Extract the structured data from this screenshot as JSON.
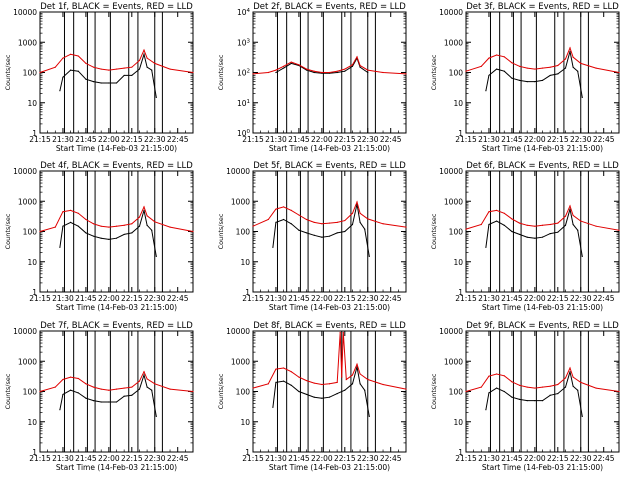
{
  "colors": {
    "events": "#000000",
    "lld": "#e00000",
    "frame": "#000000"
  },
  "common": {
    "xlabel": "Start Time (14-Feb-03 21:15:00)",
    "ylabel": "Counts/sec",
    "xticks": [
      "21:15",
      "21:30",
      "21:45",
      "22:00",
      "22:15",
      "22:30",
      "22:45"
    ],
    "yscale": "log",
    "ylim": [
      1,
      10000
    ]
  },
  "chart_data": [
    {
      "type": "line",
      "title": "Det 1f, BLACK = Events, RED = LLD",
      "xlim": [
        "21:15",
        "22:55"
      ],
      "ylim": [
        1,
        10000
      ],
      "yscale": "log",
      "yticks": [
        "1",
        "10",
        "100",
        "1000",
        "10000"
      ],
      "gaps": [
        "21:31",
        "21:37",
        "21:46",
        "21:51",
        "22:01",
        "22:13",
        "22:19",
        "22:30",
        "22:35"
      ],
      "series": [
        {
          "name": "Events",
          "color": "black",
          "x": [
            "21:28",
            "21:30",
            "21:35",
            "21:40",
            "21:45",
            "21:50",
            "21:55",
            "22:00",
            "22:05",
            "22:10",
            "22:15",
            "22:20",
            "22:23",
            "22:25",
            "22:28",
            "22:31"
          ],
          "y": [
            25,
            70,
            120,
            110,
            60,
            50,
            45,
            45,
            45,
            80,
            80,
            130,
            400,
            150,
            120,
            15
          ]
        },
        {
          "name": "LLD",
          "color": "red",
          "x": [
            "21:15",
            "21:25",
            "21:30",
            "21:35",
            "21:40",
            "21:45",
            "21:50",
            "21:55",
            "22:00",
            "22:05",
            "22:10",
            "22:15",
            "22:20",
            "22:23",
            "22:25",
            "22:30",
            "22:40",
            "22:55"
          ],
          "y": [
            100,
            150,
            300,
            400,
            350,
            200,
            150,
            130,
            120,
            130,
            140,
            150,
            250,
            550,
            300,
            200,
            130,
            100
          ]
        }
      ]
    },
    {
      "type": "line",
      "title": "Det 2f, BLACK = Events, RED = LLD",
      "xlim": [
        "21:15",
        "22:55"
      ],
      "ylim": [
        1,
        10000
      ],
      "yscale": "log",
      "yticks": [
        "10^0",
        "10^1",
        "10^2",
        "10^3",
        "10^4"
      ],
      "gaps": [
        "21:31",
        "21:37",
        "21:46",
        "21:51",
        "22:01",
        "22:13",
        "22:19",
        "22:30",
        "22:35"
      ],
      "series": [
        {
          "name": "Events",
          "color": "black",
          "x": [
            "21:30",
            "21:35",
            "21:40",
            "21:45",
            "21:50",
            "21:55",
            "22:00",
            "22:05",
            "22:10",
            "22:15",
            "22:20",
            "22:23",
            "22:25",
            "22:30"
          ],
          "y": [
            100,
            140,
            200,
            170,
            120,
            100,
            95,
            95,
            100,
            110,
            160,
            300,
            150,
            100
          ]
        },
        {
          "name": "LLD",
          "color": "red",
          "x": [
            "21:15",
            "21:25",
            "21:30",
            "21:35",
            "21:40",
            "21:45",
            "21:50",
            "21:55",
            "22:00",
            "22:05",
            "22:10",
            "22:15",
            "22:20",
            "22:23",
            "22:25",
            "22:30",
            "22:40",
            "22:55"
          ],
          "y": [
            90,
            100,
            120,
            160,
            220,
            180,
            130,
            110,
            100,
            100,
            110,
            130,
            180,
            330,
            170,
            120,
            100,
            90
          ]
        }
      ]
    },
    {
      "type": "line",
      "title": "Det 3f, BLACK = Events, RED = LLD",
      "xlim": [
        "21:15",
        "22:55"
      ],
      "ylim": [
        1,
        10000
      ],
      "yscale": "log",
      "yticks": [
        "1",
        "10",
        "100",
        "1000",
        "10000"
      ],
      "gaps": [
        "21:31",
        "21:37",
        "21:46",
        "21:51",
        "22:01",
        "22:13",
        "22:19",
        "22:30",
        "22:35"
      ],
      "series": [
        {
          "name": "Events",
          "color": "black",
          "x": [
            "21:28",
            "21:30",
            "21:35",
            "21:40",
            "21:45",
            "21:50",
            "21:55",
            "22:00",
            "22:05",
            "22:10",
            "22:15",
            "22:20",
            "22:23",
            "22:25",
            "22:28",
            "22:31"
          ],
          "y": [
            25,
            80,
            130,
            110,
            65,
            55,
            50,
            50,
            55,
            80,
            90,
            140,
            500,
            150,
            110,
            15
          ]
        },
        {
          "name": "LLD",
          "color": "red",
          "x": [
            "21:15",
            "21:25",
            "21:30",
            "21:35",
            "21:40",
            "21:45",
            "21:50",
            "21:55",
            "22:00",
            "22:05",
            "22:10",
            "22:15",
            "22:20",
            "22:23",
            "22:25",
            "22:30",
            "22:40",
            "22:55"
          ],
          "y": [
            110,
            160,
            300,
            380,
            330,
            210,
            160,
            140,
            130,
            140,
            150,
            170,
            280,
            650,
            320,
            200,
            140,
            100
          ]
        }
      ]
    },
    {
      "type": "line",
      "title": "Det 4f, BLACK = Events, RED = LLD",
      "xlim": [
        "21:15",
        "22:55"
      ],
      "ylim": [
        1,
        10000
      ],
      "yscale": "log",
      "yticks": [
        "1",
        "10",
        "100",
        "1000",
        "10000"
      ],
      "gaps": [
        "21:31",
        "21:37",
        "21:46",
        "21:51",
        "22:01",
        "22:13",
        "22:19",
        "22:30",
        "22:35"
      ],
      "series": [
        {
          "name": "Events",
          "color": "black",
          "x": [
            "21:28",
            "21:30",
            "21:35",
            "21:40",
            "21:45",
            "21:50",
            "21:55",
            "22:00",
            "22:05",
            "22:10",
            "22:15",
            "22:20",
            "22:23",
            "22:25",
            "22:28",
            "22:31"
          ],
          "y": [
            30,
            150,
            200,
            150,
            90,
            70,
            60,
            55,
            60,
            80,
            90,
            150,
            500,
            160,
            110,
            15
          ]
        },
        {
          "name": "LLD",
          "color": "red",
          "x": [
            "21:15",
            "21:25",
            "21:30",
            "21:35",
            "21:40",
            "21:45",
            "21:50",
            "21:55",
            "22:00",
            "22:05",
            "22:10",
            "22:15",
            "22:20",
            "22:23",
            "22:25",
            "22:30",
            "22:40",
            "22:55"
          ],
          "y": [
            100,
            140,
            450,
            500,
            400,
            250,
            180,
            150,
            140,
            150,
            160,
            180,
            300,
            650,
            330,
            210,
            140,
            100
          ]
        }
      ]
    },
    {
      "type": "line",
      "title": "Det 5f, BLACK = Events, RED = LLD",
      "xlim": [
        "21:15",
        "22:55"
      ],
      "ylim": [
        1,
        10000
      ],
      "yscale": "log",
      "yticks": [
        "1",
        "10",
        "100",
        "1000",
        "10000"
      ],
      "gaps": [
        "21:31",
        "21:37",
        "21:46",
        "21:51",
        "22:01",
        "22:13",
        "22:19",
        "22:30",
        "22:35"
      ],
      "series": [
        {
          "name": "Events",
          "color": "black",
          "x": [
            "21:28",
            "21:30",
            "21:35",
            "21:40",
            "21:45",
            "21:50",
            "21:55",
            "22:00",
            "22:05",
            "22:10",
            "22:15",
            "22:20",
            "22:23",
            "22:25",
            "22:28",
            "22:31"
          ],
          "y": [
            30,
            200,
            250,
            180,
            110,
            90,
            75,
            65,
            70,
            90,
            100,
            170,
            800,
            200,
            120,
            15
          ]
        },
        {
          "name": "LLD",
          "color": "red",
          "x": [
            "21:15",
            "21:25",
            "21:30",
            "21:35",
            "21:40",
            "21:45",
            "21:50",
            "21:55",
            "22:00",
            "22:05",
            "22:10",
            "22:15",
            "22:20",
            "22:23",
            "22:25",
            "22:30",
            "22:40",
            "22:55"
          ],
          "y": [
            150,
            250,
            550,
            650,
            500,
            350,
            250,
            200,
            180,
            190,
            200,
            230,
            400,
            950,
            400,
            260,
            180,
            140
          ]
        }
      ]
    },
    {
      "type": "line",
      "title": "Det 6f, BLACK = Events, RED = LLD",
      "xlim": [
        "21:15",
        "22:55"
      ],
      "ylim": [
        1,
        10000
      ],
      "yscale": "log",
      "yticks": [
        "1",
        "10",
        "100",
        "1000",
        "10000"
      ],
      "gaps": [
        "21:31",
        "21:37",
        "21:46",
        "21:51",
        "22:01",
        "22:13",
        "22:19",
        "22:30",
        "22:35"
      ],
      "series": [
        {
          "name": "Events",
          "color": "black",
          "x": [
            "21:28",
            "21:30",
            "21:35",
            "21:40",
            "21:45",
            "21:50",
            "21:55",
            "22:00",
            "22:05",
            "22:10",
            "22:15",
            "22:20",
            "22:23",
            "22:25",
            "22:28",
            "22:31"
          ],
          "y": [
            30,
            170,
            220,
            160,
            100,
            80,
            65,
            60,
            65,
            85,
            95,
            160,
            550,
            170,
            110,
            15
          ]
        },
        {
          "name": "LLD",
          "color": "red",
          "x": [
            "21:15",
            "21:25",
            "21:30",
            "21:35",
            "21:40",
            "21:45",
            "21:50",
            "21:55",
            "22:00",
            "22:05",
            "22:10",
            "22:15",
            "22:20",
            "22:23",
            "22:25",
            "22:30",
            "22:40",
            "22:55"
          ],
          "y": [
            120,
            170,
            450,
            500,
            400,
            260,
            190,
            160,
            150,
            160,
            170,
            190,
            320,
            700,
            340,
            220,
            150,
            110
          ]
        }
      ]
    },
    {
      "type": "line",
      "title": "Det 7f, BLACK = Events, RED = LLD",
      "xlim": [
        "21:15",
        "22:55"
      ],
      "ylim": [
        1,
        10000
      ],
      "yscale": "log",
      "yticks": [
        "1",
        "10",
        "100",
        "1000",
        "10000"
      ],
      "gaps": [
        "21:31",
        "21:37",
        "21:46",
        "21:51",
        "22:01",
        "22:13",
        "22:19",
        "22:30",
        "22:35"
      ],
      "series": [
        {
          "name": "Events",
          "color": "black",
          "x": [
            "21:28",
            "21:30",
            "21:35",
            "21:40",
            "21:45",
            "21:50",
            "21:55",
            "22:00",
            "22:05",
            "22:10",
            "22:15",
            "22:20",
            "22:23",
            "22:25",
            "22:28",
            "22:31"
          ],
          "y": [
            25,
            80,
            110,
            90,
            60,
            50,
            45,
            45,
            45,
            70,
            75,
            120,
            350,
            140,
            110,
            15
          ]
        },
        {
          "name": "LLD",
          "color": "red",
          "x": [
            "21:15",
            "21:25",
            "21:30",
            "21:35",
            "21:40",
            "21:45",
            "21:50",
            "21:55",
            "22:00",
            "22:05",
            "22:10",
            "22:15",
            "22:20",
            "22:23",
            "22:25",
            "22:30",
            "22:40",
            "22:55"
          ],
          "y": [
            100,
            140,
            250,
            300,
            270,
            180,
            140,
            120,
            110,
            120,
            130,
            140,
            220,
            450,
            260,
            180,
            120,
            100
          ]
        }
      ]
    },
    {
      "type": "line",
      "title": "Det 8f, BLACK = Events, RED = LLD",
      "xlim": [
        "21:15",
        "22:55"
      ],
      "ylim": [
        1,
        10000
      ],
      "yscale": "log",
      "yticks": [
        "1",
        "10",
        "100",
        "1000",
        "10000"
      ],
      "gaps": [
        "21:31",
        "21:37",
        "21:46",
        "21:51",
        "22:01",
        "22:13",
        "22:19",
        "22:30",
        "22:35"
      ],
      "series": [
        {
          "name": "Events",
          "color": "black",
          "x": [
            "21:28",
            "21:30",
            "21:35",
            "21:40",
            "21:45",
            "21:50",
            "21:55",
            "22:00",
            "22:05",
            "22:10",
            "22:15",
            "22:20",
            "22:23",
            "22:25",
            "22:28",
            "22:31"
          ],
          "y": [
            30,
            200,
            220,
            160,
            100,
            80,
            65,
            60,
            65,
            85,
            110,
            180,
            650,
            180,
            110,
            15
          ]
        },
        {
          "name": "LLD",
          "color": "red",
          "x": [
            "21:15",
            "21:25",
            "21:30",
            "21:35",
            "21:40",
            "21:45",
            "21:50",
            "21:55",
            "22:00",
            "22:05",
            "22:10",
            "22:12",
            "22:13",
            "22:14",
            "22:16",
            "22:20",
            "22:23",
            "22:25",
            "22:30",
            "22:40",
            "22:55"
          ],
          "y": [
            130,
            180,
            550,
            600,
            450,
            300,
            230,
            190,
            170,
            180,
            200,
            9000,
            300,
            9000,
            250,
            350,
            800,
            380,
            250,
            170,
            120
          ]
        }
      ]
    },
    {
      "type": "line",
      "title": "Det 9f, BLACK = Events, RED = LLD",
      "xlim": [
        "21:15",
        "22:55"
      ],
      "ylim": [
        1,
        10000
      ],
      "yscale": "log",
      "yticks": [
        "1",
        "10",
        "100",
        "1000",
        "10000"
      ],
      "gaps": [
        "21:31",
        "21:37",
        "21:46",
        "21:51",
        "22:01",
        "22:13",
        "22:19",
        "22:30",
        "22:35"
      ],
      "series": [
        {
          "name": "Events",
          "color": "black",
          "x": [
            "21:28",
            "21:30",
            "21:35",
            "21:40",
            "21:45",
            "21:50",
            "21:55",
            "22:00",
            "22:05",
            "22:10",
            "22:15",
            "22:20",
            "22:23",
            "22:25",
            "22:28",
            "22:31"
          ],
          "y": [
            25,
            90,
            130,
            100,
            65,
            55,
            50,
            50,
            50,
            75,
            85,
            140,
            450,
            150,
            110,
            15
          ]
        },
        {
          "name": "LLD",
          "color": "red",
          "x": [
            "21:15",
            "21:25",
            "21:30",
            "21:35",
            "21:40",
            "21:45",
            "21:50",
            "21:55",
            "22:00",
            "22:05",
            "22:10",
            "22:15",
            "22:20",
            "22:23",
            "22:25",
            "22:30",
            "22:40",
            "22:55"
          ],
          "y": [
            100,
            140,
            320,
            380,
            330,
            210,
            160,
            140,
            130,
            140,
            150,
            170,
            280,
            600,
            300,
            200,
            130,
            100
          ]
        }
      ]
    }
  ]
}
